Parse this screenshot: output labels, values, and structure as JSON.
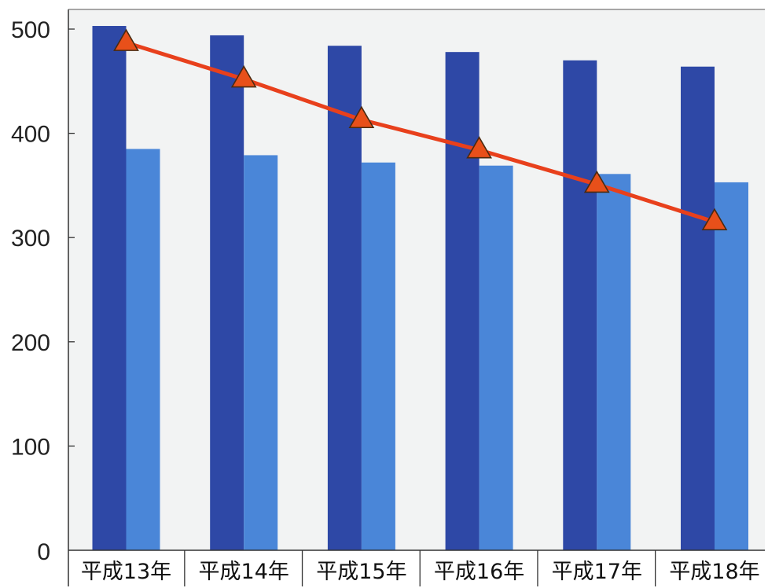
{
  "chart_data": {
    "type": "bar",
    "categories": [
      "平成13年",
      "平成14年",
      "平成15年",
      "平成16年",
      "平成17年",
      "平成18年"
    ],
    "series": [
      {
        "kind": "bar",
        "values": [
          503,
          494,
          484,
          478,
          470,
          464
        ],
        "color": "#2e48a6"
      },
      {
        "kind": "bar",
        "values": [
          385,
          379,
          372,
          369,
          361,
          353
        ],
        "color": "#4a86d8"
      },
      {
        "kind": "line",
        "values": [
          487,
          452,
          413,
          384,
          351,
          315
        ],
        "color": "#e8401c",
        "marker": "triangle",
        "marker_color": "#e8501a"
      }
    ],
    "yticks": [
      0,
      100,
      200,
      300,
      400,
      500
    ],
    "ylim": [
      0,
      500
    ],
    "grid": false,
    "plot_background": "#f2f3f3"
  }
}
